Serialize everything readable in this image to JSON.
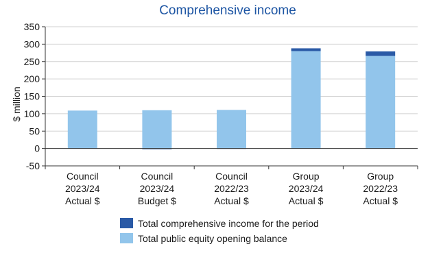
{
  "chart_data": {
    "type": "bar",
    "stacked": true,
    "title": "Comprehensive income",
    "ylabel": "$ million",
    "xlabel": "",
    "ylim": [
      -50,
      350
    ],
    "yticks": [
      -50,
      0,
      50,
      100,
      150,
      200,
      250,
      300,
      350
    ],
    "grid": true,
    "legend_placement": "bottom",
    "categories": [
      [
        "Council",
        "2023/24",
        "Actual $"
      ],
      [
        "Council",
        "2023/24",
        "Budget $"
      ],
      [
        "Council",
        "2022/23",
        "Actual $"
      ],
      [
        "Group",
        "2023/24",
        "Actual $"
      ],
      [
        "Group",
        "2022/23",
        "Actual $"
      ]
    ],
    "series": [
      {
        "name": "Total public equity opening balance",
        "color": "#92c5eb",
        "values": [
          109,
          110,
          111,
          280,
          266
        ]
      },
      {
        "name": "Total comprehensive income for the period",
        "color": "#2a5aa6",
        "values": [
          0,
          -2,
          -1,
          8,
          13
        ]
      }
    ]
  }
}
